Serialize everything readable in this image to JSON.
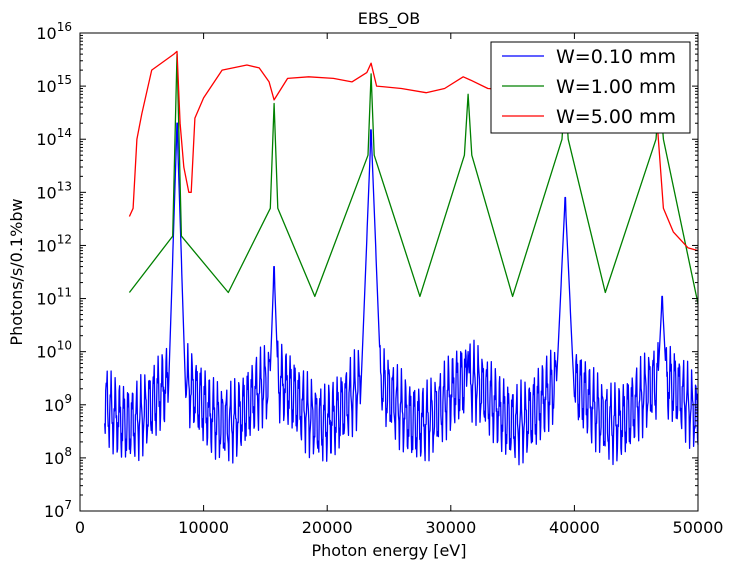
{
  "chart_data": {
    "type": "line",
    "title": "EBS_OB",
    "xlabel": "Photon energy [eV]",
    "ylabel": "Photons/s/0.1%bw",
    "xlim": [
      0,
      50000
    ],
    "ylim": [
      10000000.0,
      1e+16
    ],
    "y_scale": "log",
    "x_ticks": [
      0,
      10000,
      20000,
      30000,
      40000,
      50000
    ],
    "y_ticks": [
      {
        "value": 10000000.0,
        "base": "10",
        "exp": "7"
      },
      {
        "value": 100000000.0,
        "base": "10",
        "exp": "8"
      },
      {
        "value": 1000000000.0,
        "base": "10",
        "exp": "9"
      },
      {
        "value": 10000000000.0,
        "base": "10",
        "exp": "10"
      },
      {
        "value": 100000000000.0,
        "base": "10",
        "exp": "11"
      },
      {
        "value": 1000000000000.0,
        "base": "10",
        "exp": "12"
      },
      {
        "value": 10000000000000.0,
        "base": "10",
        "exp": "13"
      },
      {
        "value": 100000000000000.0,
        "base": "10",
        "exp": "14"
      },
      {
        "value": 1000000000000000.0,
        "base": "10",
        "exp": "15"
      },
      {
        "value": 1e+16,
        "base": "10",
        "exp": "16"
      }
    ],
    "grid": false,
    "legend_position": "top-right",
    "series": [
      {
        "name": "W=0.10 mm",
        "color": "#0000ff",
        "harmonics": [
          7850,
          15700,
          23550,
          31400,
          39250,
          47100
        ],
        "peaks": [
          200000000000000.0,
          400000000000.0,
          150000000000000.0,
          10000000000.0,
          8000000000000.0,
          110000000000.0
        ],
        "range": [
          2000,
          50000
        ],
        "x": [
          2000,
          7850,
          15700,
          23550,
          31400,
          39250,
          47100,
          50000
        ],
        "y": [
          800000000.0,
          200000000000000.0,
          400000000000.0,
          150000000000000.0,
          10000000000.0,
          8000000000000.0,
          110000000000.0,
          300000000.0
        ]
      },
      {
        "name": "W=1.00 mm",
        "color": "#008000",
        "x": [
          4000,
          7500,
          7850,
          8200,
          12000,
          15400,
          15700,
          16000,
          19000,
          23300,
          23550,
          23800,
          27500,
          31100,
          31400,
          31700,
          35000,
          39000,
          39250,
          39500,
          42500,
          46600,
          46900,
          47200,
          50000
        ],
        "y": [
          130000000000.0,
          1500000000000.0,
          4000000000000000.0,
          1500000000000.0,
          130000000000.0,
          5000000000000.0,
          470000000000000.0,
          5000000000000.0,
          110000000000.0,
          50000000000000.0,
          1700000000000000.0,
          50000000000000.0,
          110000000000.0,
          50000000000000.0,
          700000000000000.0,
          50000000000000.0,
          110000000000.0,
          100000000000000.0,
          800000000000000.0,
          100000000000000.0,
          130000000000.0,
          100000000000000.0,
          800000000000000.0,
          100000000000000.0,
          80000000000.0
        ]
      },
      {
        "name": "W=5.00 mm",
        "color": "#ff0000",
        "x": [
          4000,
          4300,
          4600,
          5000,
          5800,
          7600,
          7850,
          8100,
          8400,
          8800,
          9000,
          9300,
          10000,
          11500,
          13500,
          14500,
          15300,
          15700,
          16800,
          18500,
          20500,
          22000,
          23200,
          23550,
          24000,
          26000,
          28000,
          29500,
          31000,
          31600,
          33000,
          36000,
          38500,
          39600,
          42000,
          45500,
          46300,
          46700,
          47200,
          48000,
          49200,
          50000
        ],
        "y": [
          3500000000000.0,
          5000000000000.0,
          100000000000000.0,
          300000000000000.0,
          2000000000000000.0,
          4000000000000000.0,
          4500000000000000.0,
          200000000000000.0,
          30000000000000.0,
          10000000000000.0,
          10000000000000.0,
          250000000000000.0,
          600000000000000.0,
          2000000000000000.0,
          2500000000000000.0,
          2200000000000000.0,
          1200000000000000.0,
          550000000000000.0,
          1400000000000000.0,
          1500000000000000.0,
          1400000000000000.0,
          1200000000000000.0,
          1800000000000000.0,
          2700000000000000.0,
          1000000000000000.0,
          900000000000000.0,
          750000000000000.0,
          900000000000000.0,
          1500000000000000.0,
          1300000000000000.0,
          900000000000000.0,
          800000000000000.0,
          900000000000000.0,
          900000000000000.0,
          800000000000000.0,
          900000000000000.0,
          700000000000000.0,
          200000000000000.0,
          5000000000000.0,
          1800000000000.0,
          900000000000.0,
          800000000000.0
        ]
      }
    ]
  }
}
